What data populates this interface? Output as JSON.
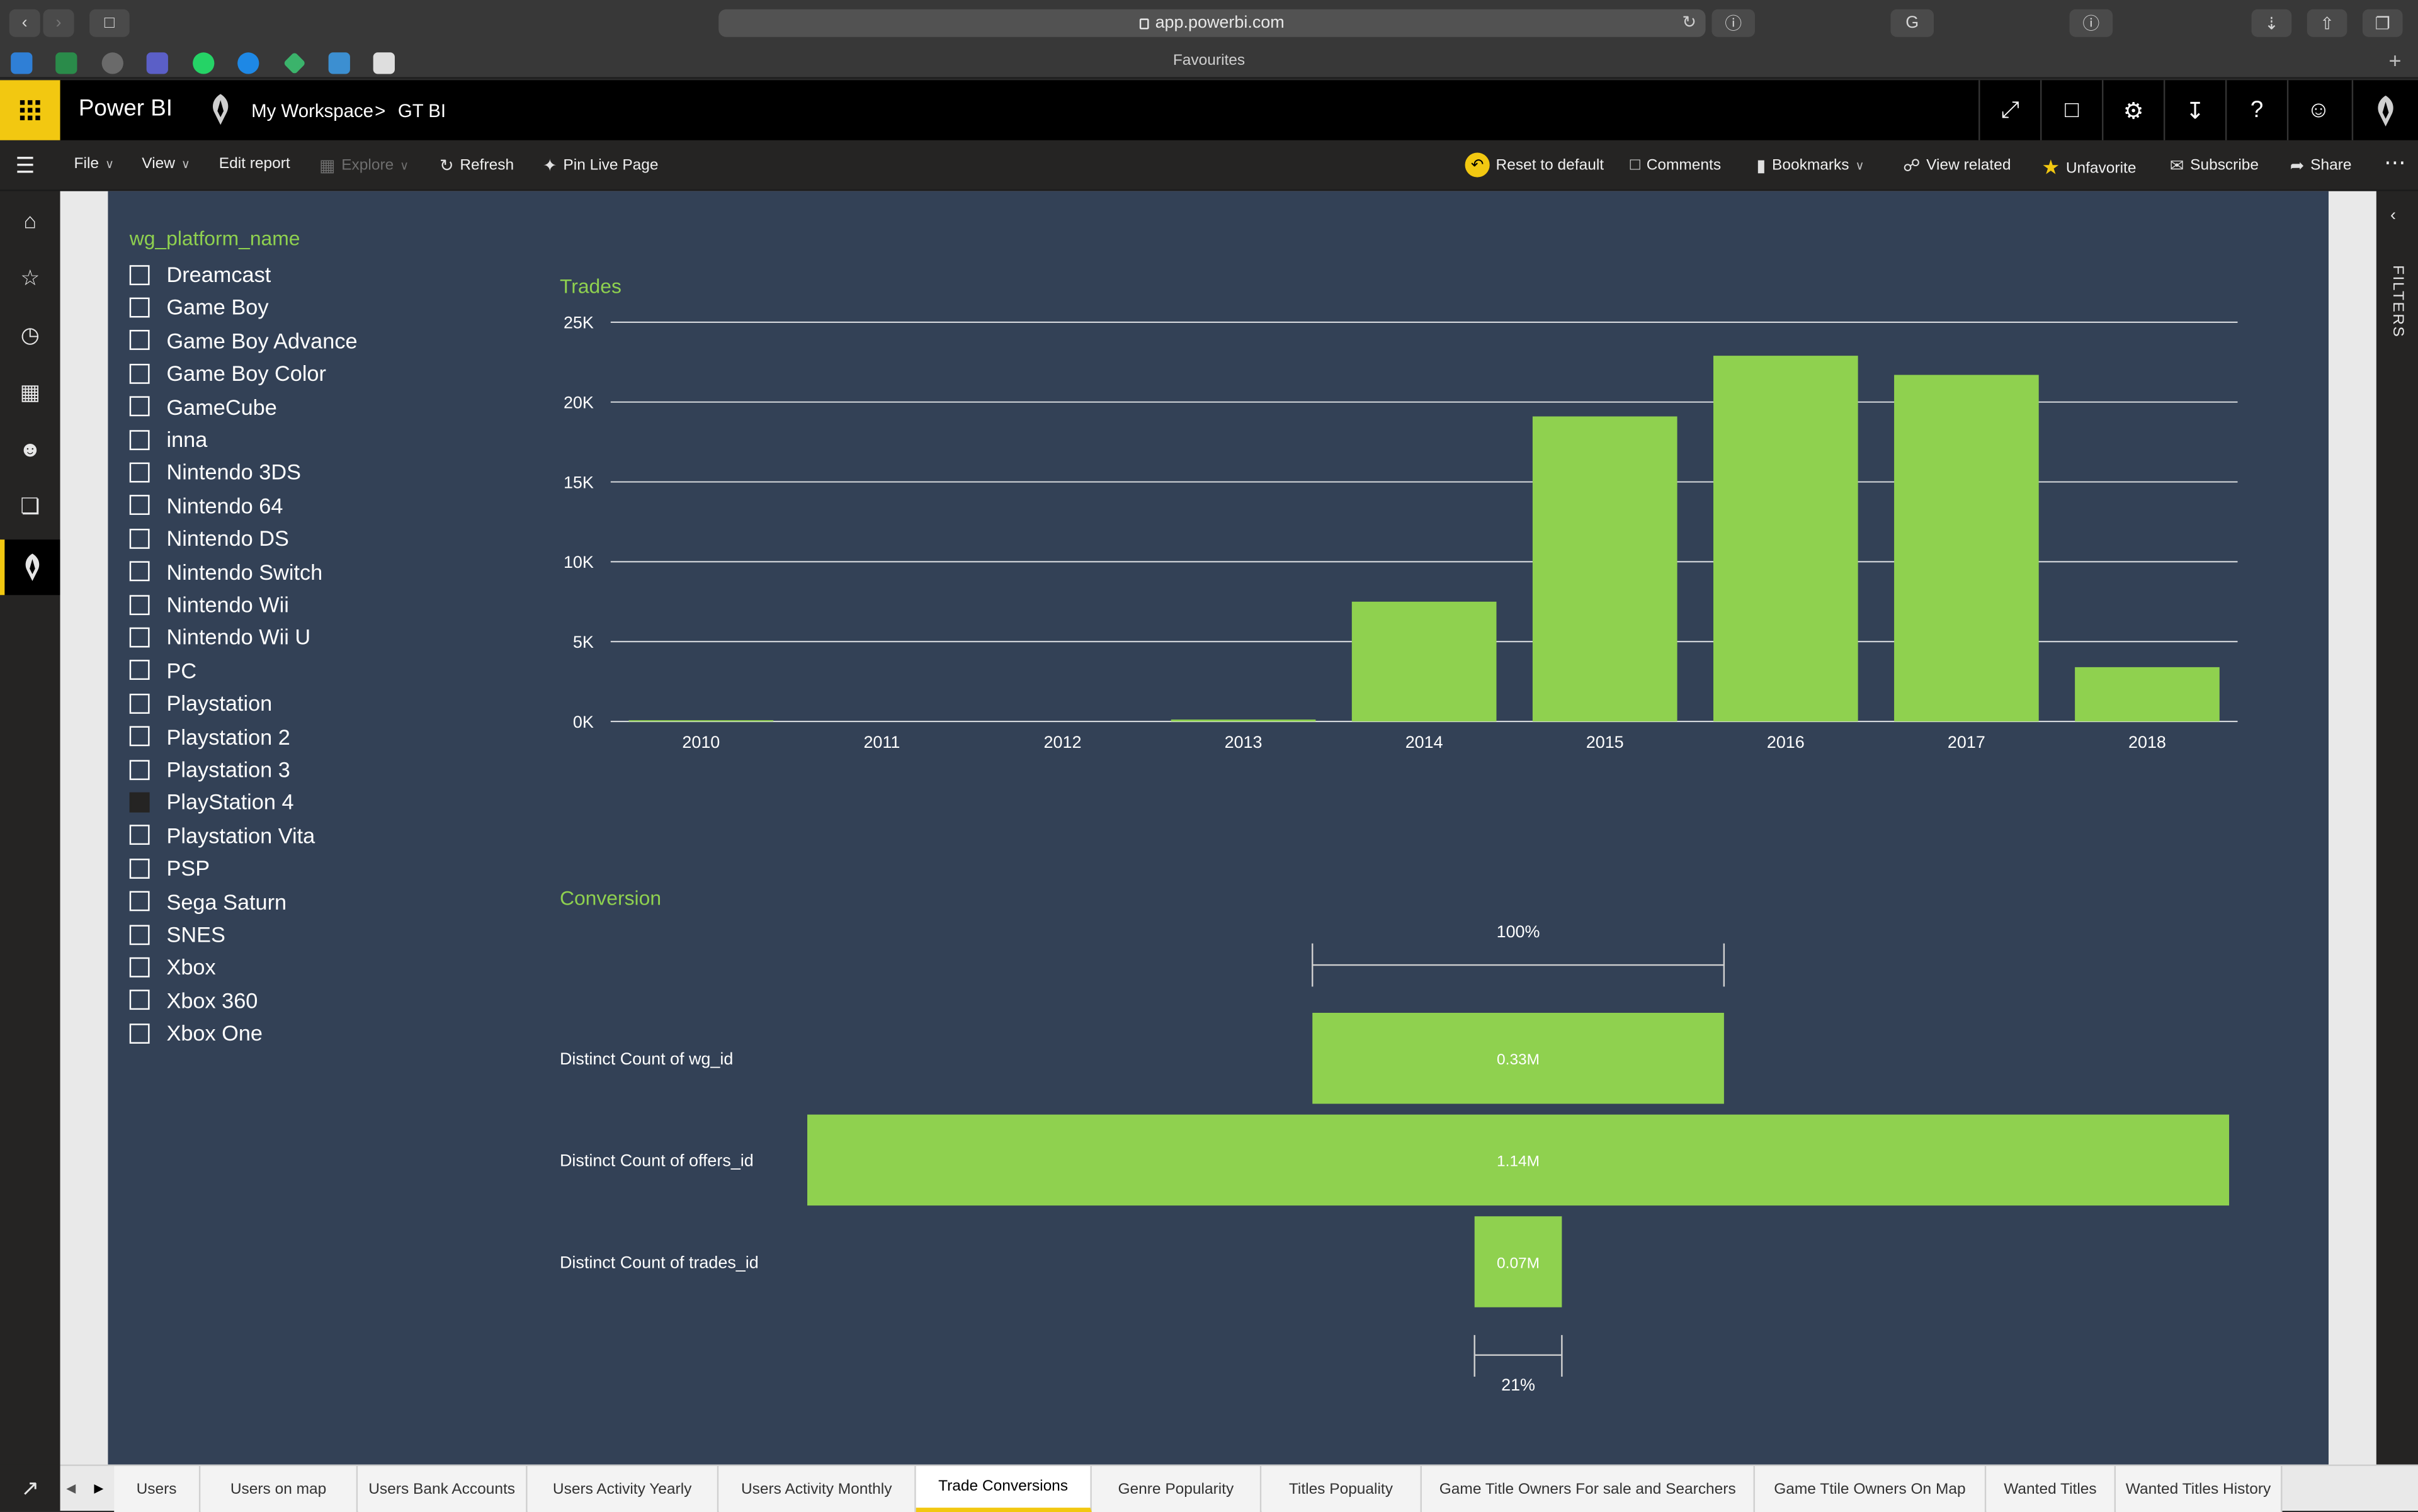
{
  "browser": {
    "url": "app.powerbi.com",
    "favourites_label": "Favourites"
  },
  "header": {
    "brand": "Power BI",
    "breadcrumb": [
      "My Workspace",
      "GT BI"
    ]
  },
  "commands": {
    "file": "File",
    "view": "View",
    "edit_report": "Edit report",
    "explore": "Explore",
    "refresh": "Refresh",
    "pin_live_page": "Pin Live Page",
    "reset_to_default": "Reset to default",
    "comments": "Comments",
    "bookmarks": "Bookmarks",
    "view_related": "View related",
    "unfavorite": "Unfavorite",
    "subscribe": "Subscribe",
    "share": "Share"
  },
  "filters_pane": {
    "label": "FILTERS"
  },
  "slicer": {
    "title": "wg_platform_name",
    "items": [
      {
        "label": "Dreamcast",
        "checked": false
      },
      {
        "label": "Game Boy",
        "checked": false
      },
      {
        "label": "Game Boy Advance",
        "checked": false
      },
      {
        "label": "Game Boy Color",
        "checked": false
      },
      {
        "label": "GameCube",
        "checked": false
      },
      {
        "label": "inna",
        "checked": false
      },
      {
        "label": "Nintendo 3DS",
        "checked": false
      },
      {
        "label": "Nintendo 64",
        "checked": false
      },
      {
        "label": "Nintendo DS",
        "checked": false
      },
      {
        "label": "Nintendo Switch",
        "checked": false
      },
      {
        "label": "Nintendo Wii",
        "checked": false
      },
      {
        "label": "Nintendo Wii U",
        "checked": false
      },
      {
        "label": "PC",
        "checked": false
      },
      {
        "label": "Playstation",
        "checked": false
      },
      {
        "label": "Playstation 2",
        "checked": false
      },
      {
        "label": "Playstation 3",
        "checked": false
      },
      {
        "label": "PlayStation 4",
        "checked": true
      },
      {
        "label": "Playstation Vita",
        "checked": false
      },
      {
        "label": "PSP",
        "checked": false
      },
      {
        "label": "Sega Saturn",
        "checked": false
      },
      {
        "label": "SNES",
        "checked": false
      },
      {
        "label": "Xbox",
        "checked": false
      },
      {
        "label": "Xbox 360",
        "checked": false
      },
      {
        "label": "Xbox One",
        "checked": false
      }
    ]
  },
  "chart_data": [
    {
      "type": "bar",
      "title": "Trades",
      "categories": [
        "2010",
        "2011",
        "2012",
        "2013",
        "2014",
        "2015",
        "2016",
        "2017",
        "2018"
      ],
      "values": [
        80,
        0,
        0,
        120,
        7500,
        19100,
        22900,
        21700,
        3400
      ],
      "yticks": [
        "0K",
        "5K",
        "10K",
        "15K",
        "20K",
        "25K"
      ],
      "ylim": [
        0,
        25000
      ],
      "grid": true,
      "color": "#8fd14f"
    },
    {
      "type": "funnel",
      "title": "Conversion",
      "categories": [
        "Distinct Count of wg_id",
        "Distinct Count of offers_id",
        "Distinct Count of trades_id"
      ],
      "values": [
        0.33,
        1.14,
        0.07
      ],
      "data_labels": [
        "0.33M",
        "1.14M",
        "0.07M"
      ],
      "top_label": "100%",
      "bottom_label": "21%",
      "color": "#8fd14f"
    }
  ],
  "tabs": [
    {
      "label": "Users",
      "active": false
    },
    {
      "label": "Users on map",
      "active": false
    },
    {
      "label": "Users Bank Accounts",
      "active": false
    },
    {
      "label": "Users Activity Yearly",
      "active": false
    },
    {
      "label": "Users Activity Monthly",
      "active": false
    },
    {
      "label": "Trade Conversions",
      "active": true
    },
    {
      "label": "Genre Popularity",
      "active": false
    },
    {
      "label": "Titles Popuality",
      "active": false
    },
    {
      "label": "Game Title Owners For sale and Searchers",
      "active": false
    },
    {
      "label": "Game Ttile Owners On Map",
      "active": false
    },
    {
      "label": "Wanted Titles",
      "active": false
    },
    {
      "label": "Wanted Titles History",
      "active": false
    }
  ],
  "colors": {
    "accent": "#f2c811",
    "bar_green": "#8fd14f",
    "report_bg": "#334156"
  }
}
